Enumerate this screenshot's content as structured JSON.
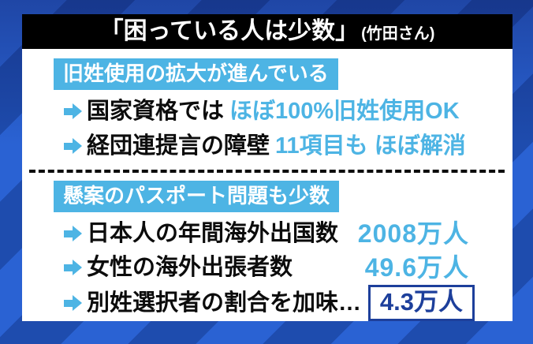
{
  "title": {
    "quote": "「困っている人は少数」",
    "attribution": "(竹田さん)"
  },
  "sections": [
    {
      "heading": "旧姓使用の拡大が進んでいる",
      "bullets": [
        {
          "text_black": "国家資格では",
          "text_blue": "ほぼ100%旧姓使用OK"
        },
        {
          "text_black": "経団連提言の障壁",
          "text_blue": "11項目も ほぼ解消"
        }
      ]
    },
    {
      "heading": "懸案のパスポート問題も少数",
      "stats": [
        {
          "label": "日本人の年間海外出国数",
          "value": "2008万人",
          "boxed": false
        },
        {
          "label": "女性の海外出張者数",
          "value": "49.6万人",
          "boxed": false
        },
        {
          "label": "別姓選択者の割合を加味…",
          "value": "4.3万人",
          "boxed": true
        }
      ]
    }
  ],
  "colors": {
    "accent_sky": "#4db4e4",
    "accent_navy": "#1d3f9b",
    "stripe_bright": "#2a62d3",
    "stripe_dark": "#1e4cae",
    "title_bar_bg": "#000000",
    "panel_bg": "#ffffff"
  }
}
